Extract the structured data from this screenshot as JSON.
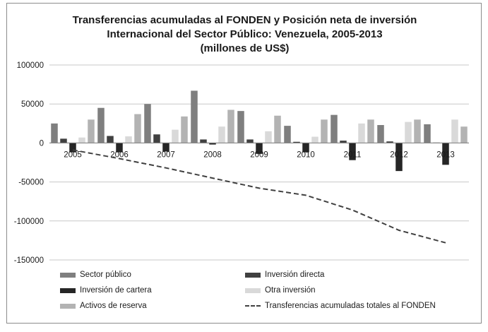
{
  "title_lines": [
    "Transferencias acumuladas al FONDEN y Posición neta de inversión",
    "Internacional del Sector Público: Venezuela, 2005-2013",
    "(millones de US$)"
  ],
  "chart_data": {
    "type": "bar",
    "title": "Transferencias acumuladas al FONDEN y Posición neta de inversión Internacional del Sector Público: Venezuela, 2005-2013 (millones de US$)",
    "categories": [
      "2005",
      "2006",
      "2007",
      "2008",
      "2009",
      "2010",
      "2011",
      "2012",
      "2013"
    ],
    "ylim": [
      -150000,
      100000
    ],
    "yticks": [
      100000,
      50000,
      0,
      -50000,
      -100000,
      -150000
    ],
    "ytick_labels": [
      "100000",
      "50000",
      "0",
      "-50000",
      "-100000",
      "-150000"
    ],
    "grid": true,
    "legend_position": "bottom",
    "series": [
      {
        "name": "Sector público",
        "type": "bar",
        "color": "#7f7f7f",
        "values": [
          25000,
          45000,
          50000,
          67000,
          41000,
          22000,
          36000,
          23000,
          24000
        ]
      },
      {
        "name": "Inversión directa",
        "type": "bar",
        "color": "#404040",
        "values": [
          5500,
          9000,
          11000,
          4500,
          4500,
          1500,
          3000,
          2000,
          500
        ]
      },
      {
        "name": "Inversión de cartera",
        "type": "bar",
        "color": "#262626",
        "values": [
          -12000,
          -12000,
          -11000,
          -2000,
          -14000,
          -12000,
          -22000,
          -36000,
          -28000
        ]
      },
      {
        "name": "Otra inversión",
        "type": "bar",
        "color": "#d9d9d9",
        "values": [
          7000,
          8500,
          17000,
          21000,
          15000,
          8000,
          25000,
          27000,
          30000
        ]
      },
      {
        "name": "Activos de reserva",
        "type": "bar",
        "color": "#b3b3b3",
        "values": [
          30000,
          37000,
          34000,
          42500,
          35000,
          30000,
          30000,
          30000,
          21000
        ]
      },
      {
        "name": "Transferencias acumuladas totales al FONDEN",
        "type": "line",
        "style": "dashed",
        "color": "#404040",
        "values": [
          -9000,
          -20000,
          -32000,
          -45000,
          -58000,
          -67000,
          -86000,
          -112000,
          -128000
        ]
      }
    ]
  },
  "legend": [
    {
      "label": "Sector público",
      "color": "#7f7f7f",
      "kind": "bar"
    },
    {
      "label": "Inversión directa",
      "color": "#404040",
      "kind": "bar"
    },
    {
      "label": "Inversión de cartera",
      "color": "#262626",
      "kind": "bar"
    },
    {
      "label": "Otra inversión",
      "color": "#d9d9d9",
      "kind": "bar"
    },
    {
      "label": "Activos de reserva",
      "color": "#b3b3b3",
      "kind": "bar"
    },
    {
      "label": "Transferencias acumuladas totales al FONDEN",
      "color": "#404040",
      "kind": "line"
    }
  ]
}
